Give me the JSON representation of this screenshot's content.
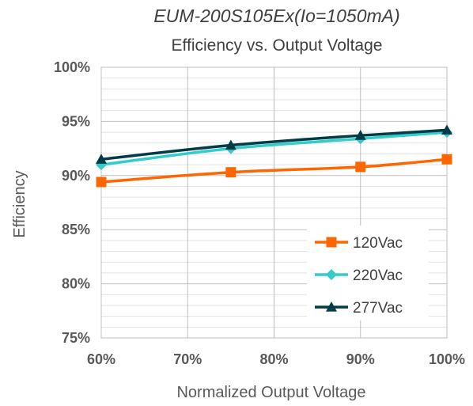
{
  "chart_data": {
    "type": "line",
    "title": "EUM-200S105Ex(Io=1050mA)",
    "subtitle": "Efficiency vs. Output Voltage",
    "xlabel": "Normalized Output Voltage",
    "ylabel": "Efficiency",
    "x": [
      60,
      75,
      90,
      100
    ],
    "xlim": [
      60,
      100
    ],
    "xticks": [
      60,
      70,
      80,
      90,
      100
    ],
    "xtick_labels": [
      "60%",
      "70%",
      "80%",
      "90%",
      "100%"
    ],
    "ylim": [
      75,
      100
    ],
    "yticks": [
      75,
      80,
      85,
      90,
      95,
      100
    ],
    "ytick_labels": [
      "75%",
      "80%",
      "85%",
      "90%",
      "95%",
      "100%"
    ],
    "grid": true,
    "legend_position": "bottom-right",
    "series": [
      {
        "name": "120Vac",
        "values": [
          89.4,
          90.3,
          90.8,
          91.5
        ],
        "color": "#ff6600",
        "marker": "square"
      },
      {
        "name": "220Vac",
        "values": [
          91.0,
          92.5,
          93.4,
          94.0
        ],
        "color": "#33cccc",
        "marker": "diamond"
      },
      {
        "name": "277Vac",
        "values": [
          91.5,
          92.8,
          93.7,
          94.2
        ],
        "color": "#003b46",
        "marker": "triangle"
      }
    ]
  }
}
